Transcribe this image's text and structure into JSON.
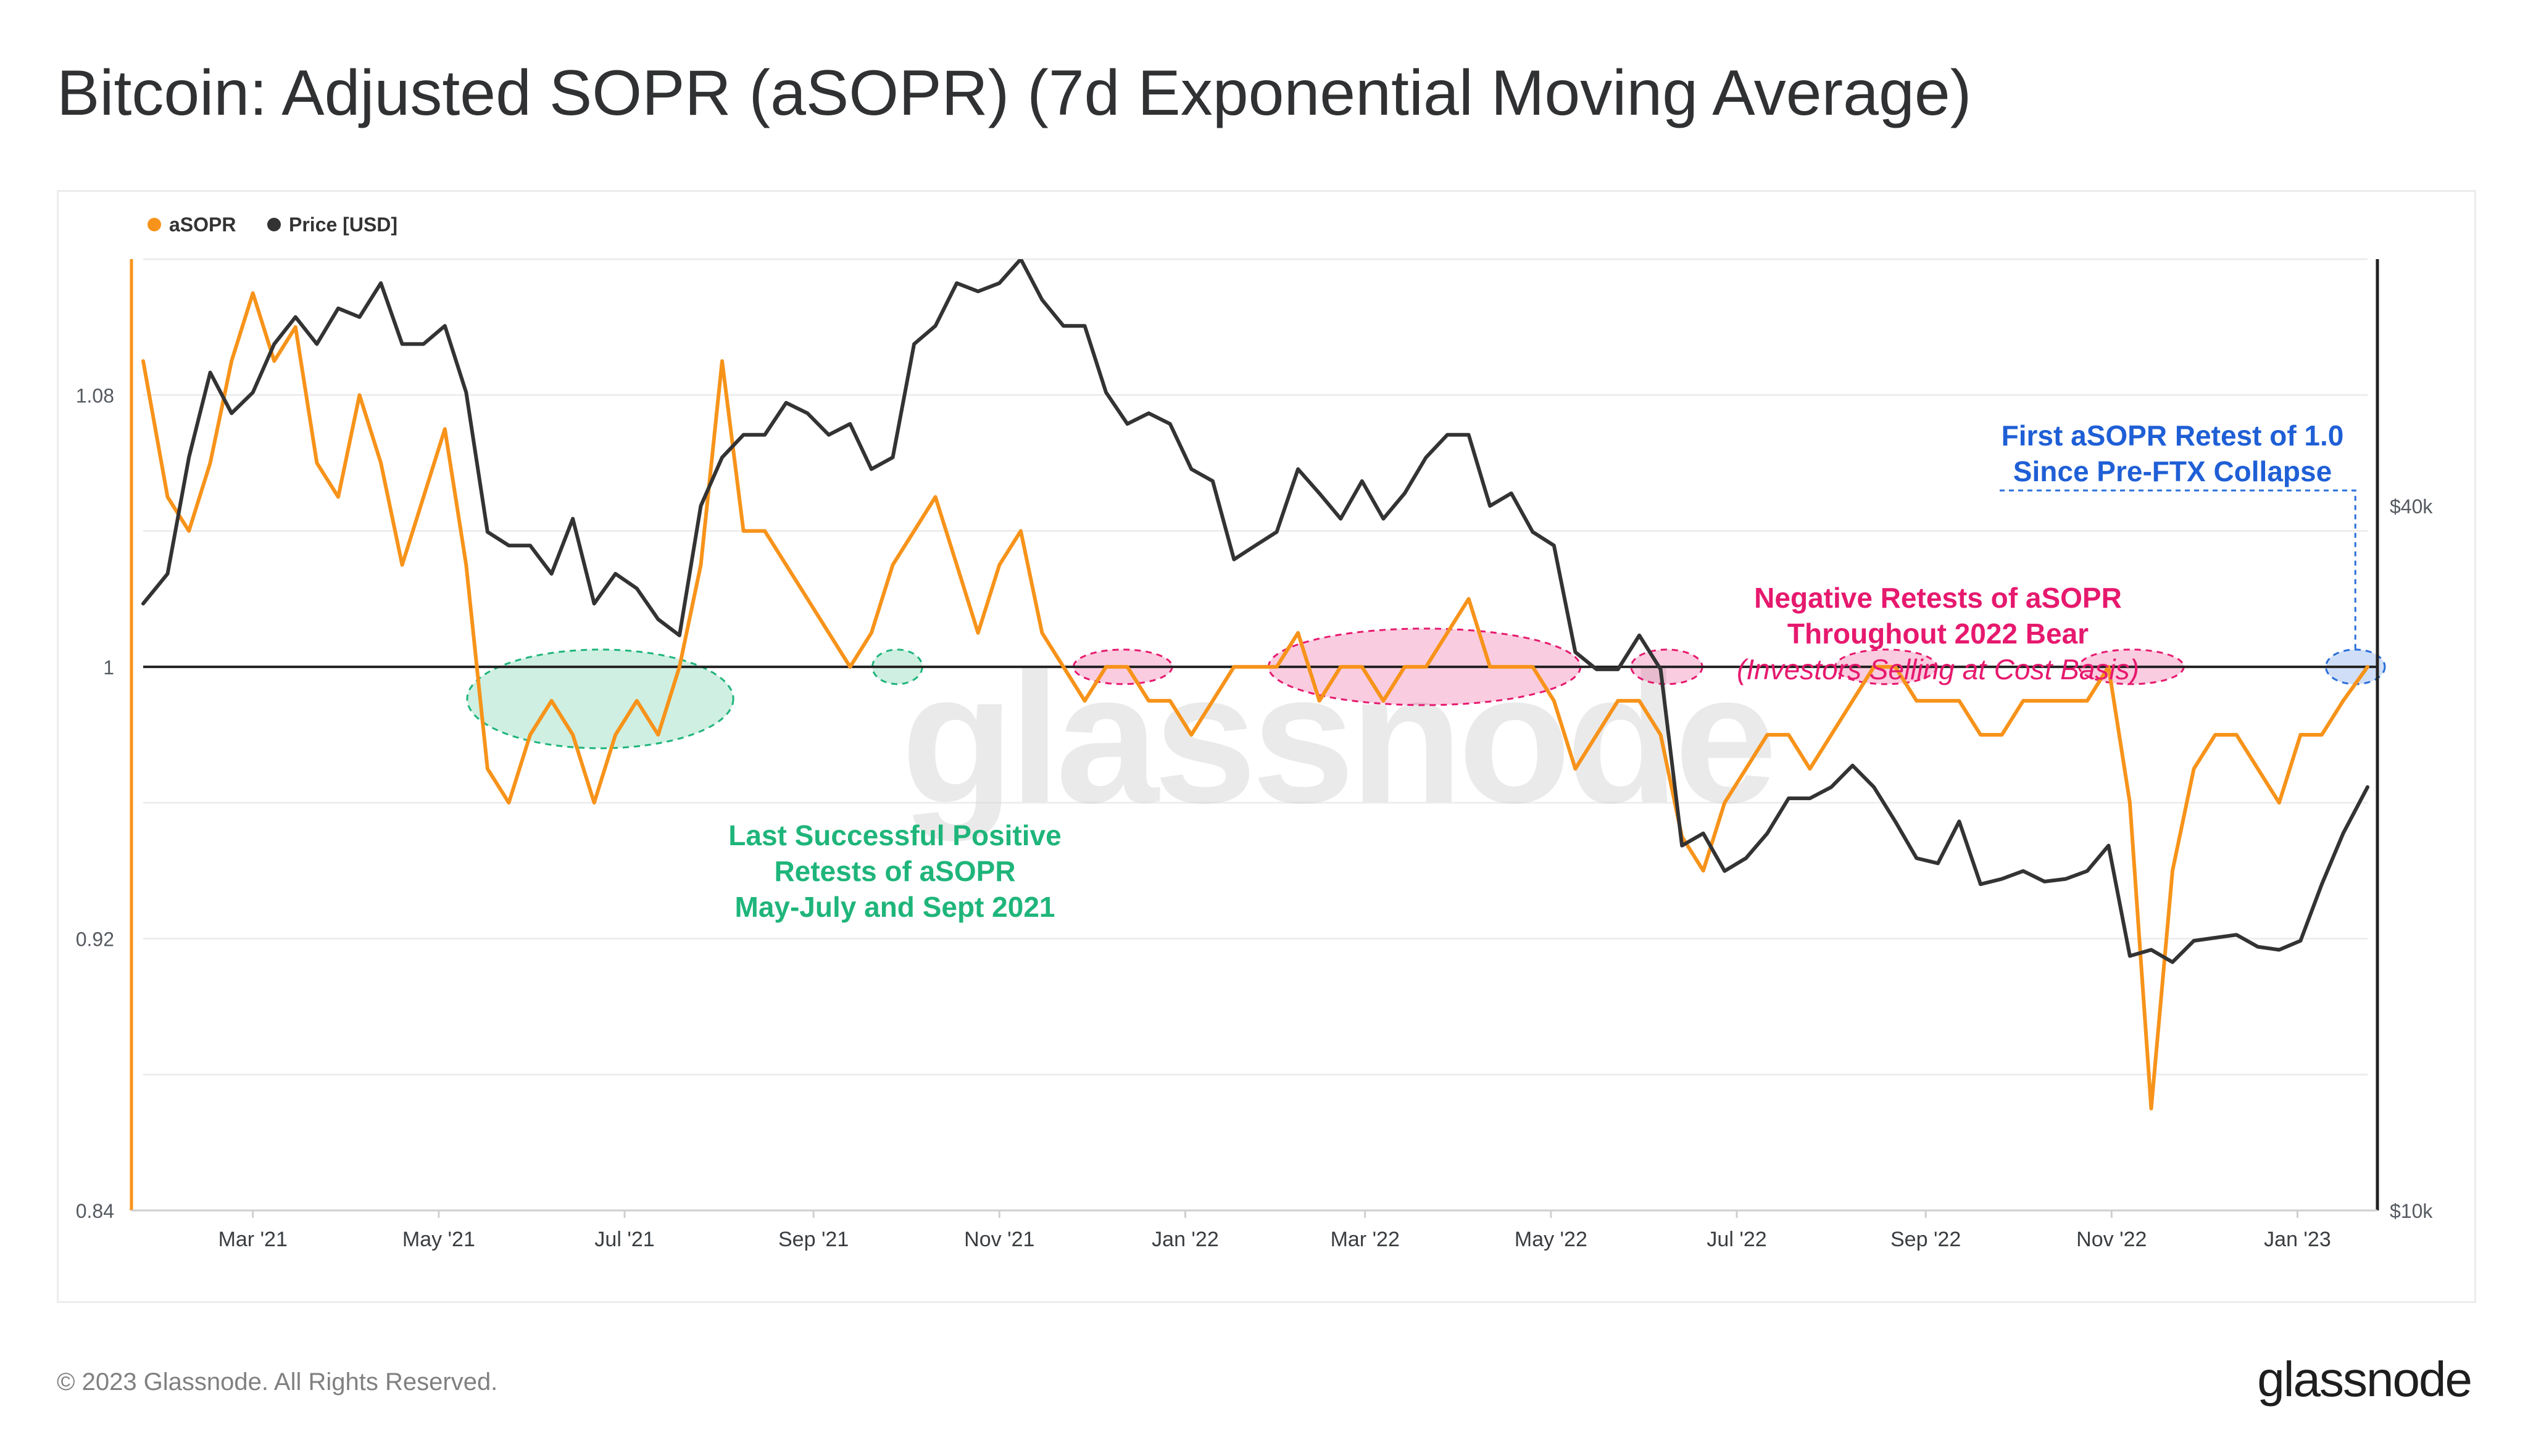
{
  "page": {
    "title": "Bitcoin: Adjusted SOPR (aSOPR) (7d Exponential Moving Average)",
    "copyright": "© 2023 Glassnode. All Rights Reserved.",
    "logo_text": "glassnode",
    "watermark": "glassnode"
  },
  "chart_data": {
    "type": "line",
    "title": "Bitcoin: Adjusted SOPR (aSOPR) (7d Exponential Moving Average)",
    "x_tick_labels": [
      "Mar '21",
      "May '21",
      "Jul '21",
      "Sep '21",
      "Nov '21",
      "Jan '22",
      "Mar '22",
      "May '22",
      "Jul '22",
      "Sep '22",
      "Nov '22",
      "Jan '23"
    ],
    "x_tick_dates": [
      "2021-03-01",
      "2021-05-01",
      "2021-07-01",
      "2021-09-01",
      "2021-11-01",
      "2022-01-01",
      "2022-03-01",
      "2022-05-01",
      "2022-07-01",
      "2022-09-01",
      "2022-11-01",
      "2023-01-01"
    ],
    "x_range": [
      "2021-01-24",
      "2023-01-24"
    ],
    "y_left": {
      "label": "",
      "range": [
        0.84,
        1.12
      ],
      "ticks": [
        0.84,
        0.92,
        1,
        1.08
      ],
      "tick_labels": [
        "0.84",
        "0.92",
        "1",
        "1.08"
      ]
    },
    "y_right": {
      "label": "",
      "scale": "log",
      "range": [
        10000,
        65000
      ],
      "ticks": [
        10000,
        40000
      ],
      "tick_labels": [
        "$10k",
        "$40k"
      ]
    },
    "reference_line": {
      "y": 1.0,
      "color": "#222222"
    },
    "legend": {
      "placement": "top-left",
      "items": [
        {
          "name": "aSOPR",
          "color": "#f7931a"
        },
        {
          "name": "Price [USD]",
          "color": "#333333"
        }
      ]
    },
    "series": [
      {
        "name": "aSOPR",
        "axis": "left",
        "color": "#f7931a",
        "x": [
          "2021-01-24",
          "2021-02-01",
          "2021-02-08",
          "2021-02-15",
          "2021-02-22",
          "2021-03-01",
          "2021-03-08",
          "2021-03-15",
          "2021-03-22",
          "2021-03-29",
          "2021-04-05",
          "2021-04-12",
          "2021-04-19",
          "2021-04-26",
          "2021-05-03",
          "2021-05-10",
          "2021-05-17",
          "2021-05-24",
          "2021-05-31",
          "2021-06-07",
          "2021-06-14",
          "2021-06-21",
          "2021-06-28",
          "2021-07-05",
          "2021-07-12",
          "2021-07-19",
          "2021-07-26",
          "2021-08-02",
          "2021-08-09",
          "2021-08-16",
          "2021-08-23",
          "2021-08-30",
          "2021-09-06",
          "2021-09-13",
          "2021-09-20",
          "2021-09-27",
          "2021-10-04",
          "2021-10-11",
          "2021-10-18",
          "2021-10-25",
          "2021-11-01",
          "2021-11-08",
          "2021-11-15",
          "2021-11-22",
          "2021-11-29",
          "2021-12-06",
          "2021-12-13",
          "2021-12-20",
          "2021-12-27",
          "2022-01-03",
          "2022-01-10",
          "2022-01-17",
          "2022-01-24",
          "2022-01-31",
          "2022-02-07",
          "2022-02-14",
          "2022-02-21",
          "2022-02-28",
          "2022-03-07",
          "2022-03-14",
          "2022-03-21",
          "2022-03-28",
          "2022-04-04",
          "2022-04-11",
          "2022-04-18",
          "2022-04-25",
          "2022-05-02",
          "2022-05-09",
          "2022-05-16",
          "2022-05-23",
          "2022-05-30",
          "2022-06-06",
          "2022-06-13",
          "2022-06-20",
          "2022-06-27",
          "2022-07-04",
          "2022-07-11",
          "2022-07-18",
          "2022-07-25",
          "2022-08-01",
          "2022-08-08",
          "2022-08-15",
          "2022-08-22",
          "2022-08-29",
          "2022-09-05",
          "2022-09-12",
          "2022-09-19",
          "2022-09-26",
          "2022-10-03",
          "2022-10-10",
          "2022-10-17",
          "2022-10-24",
          "2022-10-31",
          "2022-11-07",
          "2022-11-14",
          "2022-11-21",
          "2022-11-28",
          "2022-12-05",
          "2022-12-12",
          "2022-12-19",
          "2022-12-26",
          "2023-01-02",
          "2023-01-09",
          "2023-01-16",
          "2023-01-24"
        ],
        "values": [
          1.09,
          1.05,
          1.04,
          1.06,
          1.09,
          1.11,
          1.09,
          1.1,
          1.06,
          1.05,
          1.08,
          1.06,
          1.03,
          1.05,
          1.07,
          1.03,
          0.97,
          0.96,
          0.98,
          0.99,
          0.98,
          0.96,
          0.98,
          0.99,
          0.98,
          1.0,
          1.03,
          1.09,
          1.04,
          1.04,
          1.03,
          1.02,
          1.01,
          1.0,
          1.01,
          1.03,
          1.04,
          1.05,
          1.03,
          1.01,
          1.03,
          1.04,
          1.01,
          1.0,
          0.99,
          1.0,
          1.0,
          0.99,
          0.99,
          0.98,
          0.99,
          1.0,
          1.0,
          1.0,
          1.01,
          0.99,
          1.0,
          1.0,
          0.99,
          1.0,
          1.0,
          1.01,
          1.02,
          1.0,
          1.0,
          1.0,
          0.99,
          0.97,
          0.98,
          0.99,
          0.99,
          0.98,
          0.95,
          0.94,
          0.96,
          0.97,
          0.98,
          0.98,
          0.97,
          0.98,
          0.99,
          1.0,
          1.0,
          0.99,
          0.99,
          0.99,
          0.98,
          0.98,
          0.99,
          0.99,
          0.99,
          0.99,
          1.0,
          0.96,
          0.87,
          0.94,
          0.97,
          0.98,
          0.98,
          0.97,
          0.96,
          0.98,
          0.98,
          0.99,
          1.0
        ]
      },
      {
        "name": "Price [USD]",
        "axis": "right",
        "color": "#333333",
        "x": [
          "2021-01-24",
          "2021-02-01",
          "2021-02-08",
          "2021-02-15",
          "2021-02-22",
          "2021-03-01",
          "2021-03-08",
          "2021-03-15",
          "2021-03-22",
          "2021-03-29",
          "2021-04-05",
          "2021-04-12",
          "2021-04-19",
          "2021-04-26",
          "2021-05-03",
          "2021-05-10",
          "2021-05-17",
          "2021-05-24",
          "2021-05-31",
          "2021-06-07",
          "2021-06-14",
          "2021-06-21",
          "2021-06-28",
          "2021-07-05",
          "2021-07-12",
          "2021-07-19",
          "2021-07-26",
          "2021-08-02",
          "2021-08-09",
          "2021-08-16",
          "2021-08-23",
          "2021-08-30",
          "2021-09-06",
          "2021-09-13",
          "2021-09-20",
          "2021-09-27",
          "2021-10-04",
          "2021-10-11",
          "2021-10-18",
          "2021-10-25",
          "2021-11-01",
          "2021-11-08",
          "2021-11-15",
          "2021-11-22",
          "2021-11-29",
          "2021-12-06",
          "2021-12-13",
          "2021-12-20",
          "2021-12-27",
          "2022-01-03",
          "2022-01-10",
          "2022-01-17",
          "2022-01-24",
          "2022-01-31",
          "2022-02-07",
          "2022-02-14",
          "2022-02-21",
          "2022-02-28",
          "2022-03-07",
          "2022-03-14",
          "2022-03-21",
          "2022-03-28",
          "2022-04-04",
          "2022-04-11",
          "2022-04-18",
          "2022-04-25",
          "2022-05-02",
          "2022-05-09",
          "2022-05-16",
          "2022-05-23",
          "2022-05-30",
          "2022-06-06",
          "2022-06-13",
          "2022-06-20",
          "2022-06-27",
          "2022-07-04",
          "2022-07-11",
          "2022-07-18",
          "2022-07-25",
          "2022-08-01",
          "2022-08-08",
          "2022-08-15",
          "2022-08-22",
          "2022-08-29",
          "2022-09-05",
          "2022-09-12",
          "2022-09-19",
          "2022-09-26",
          "2022-10-03",
          "2022-10-10",
          "2022-10-17",
          "2022-10-24",
          "2022-10-31",
          "2022-11-07",
          "2022-11-14",
          "2022-11-21",
          "2022-11-28",
          "2022-12-05",
          "2022-12-12",
          "2022-12-19",
          "2022-12-26",
          "2023-01-02",
          "2023-01-09",
          "2023-01-16",
          "2023-01-24"
        ],
        "values": [
          33000,
          35000,
          44000,
          52000,
          48000,
          50000,
          55000,
          58000,
          55000,
          59000,
          58000,
          62000,
          55000,
          55000,
          57000,
          50000,
          38000,
          37000,
          37000,
          35000,
          39000,
          33000,
          35000,
          34000,
          32000,
          31000,
          40000,
          44000,
          46000,
          46000,
          49000,
          48000,
          46000,
          47000,
          43000,
          44000,
          55000,
          57000,
          62000,
          61000,
          62000,
          65000,
          60000,
          57000,
          57000,
          50000,
          47000,
          48000,
          47000,
          43000,
          42000,
          36000,
          37000,
          38000,
          43000,
          41000,
          39000,
          42000,
          39000,
          41000,
          44000,
          46000,
          46000,
          40000,
          41000,
          38000,
          37000,
          30000,
          29000,
          29000,
          31000,
          29000,
          20500,
          21000,
          19500,
          20000,
          21000,
          22500,
          22500,
          23000,
          24000,
          23000,
          21500,
          20000,
          19800,
          21500,
          19000,
          19200,
          19500,
          19100,
          19200,
          19500,
          20500,
          16500,
          16700,
          16300,
          17000,
          17100,
          17200,
          16800,
          16700,
          17000,
          19000,
          21000,
          23000
        ]
      }
    ],
    "highlight_regions": [
      {
        "kind": "positive-retest",
        "color": "#1fb57a",
        "from": "2021-05-16",
        "to": "2021-07-31"
      },
      {
        "kind": "positive-retest",
        "color": "#1fb57a",
        "from": "2021-09-26",
        "to": "2021-10-01"
      },
      {
        "kind": "negative-retest",
        "color": "#e6196e",
        "from": "2021-12-01",
        "to": "2021-12-22"
      },
      {
        "kind": "negative-retest",
        "color": "#e6196e",
        "from": "2022-02-03",
        "to": "2022-05-05"
      },
      {
        "kind": "negative-retest",
        "color": "#e6196e",
        "from": "2022-06-02",
        "to": "2022-06-14"
      },
      {
        "kind": "negative-retest",
        "color": "#e6196e",
        "from": "2022-08-08",
        "to": "2022-08-30"
      },
      {
        "kind": "negative-retest",
        "color": "#e6196e",
        "from": "2022-10-27",
        "to": "2022-11-19"
      },
      {
        "kind": "ftx-retest",
        "color": "#2a6fdb",
        "from": "2023-01-16",
        "to": "2023-01-24"
      }
    ],
    "annotations": [
      {
        "id": "positive",
        "color": "#1fb57a",
        "lines": [
          "Last Successful Positive",
          "Retests of aSOPR",
          "May-July and Sept 2021"
        ]
      },
      {
        "id": "negative",
        "color": "#e6196e",
        "lines": [
          "Negative Retests of aSOPR",
          "Throughout 2022 Bear"
        ],
        "italic_line": "(Investors Selling at Cost Basis)"
      },
      {
        "id": "ftx",
        "color": "#1f5fd6",
        "lines": [
          "First aSOPR Retest of 1.0",
          "Since Pre-FTX Collapse"
        ]
      }
    ],
    "grid": {
      "horizontal": true,
      "vertical": false
    }
  }
}
